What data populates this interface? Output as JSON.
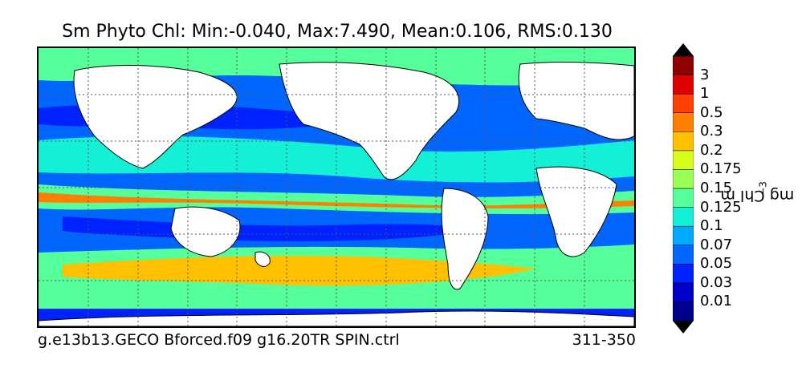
{
  "title": "Sm Phyto Chl: Min:-0.040, Max:7.490, Mean:0.106, RMS:0.130",
  "caption_left": "g.e13b13.GECO Bforced.f09 g16.20TR SPIN.ctrl",
  "caption_right": "311-350",
  "colorbar": {
    "label": "mg Chl m",
    "label_exponent": "−3",
    "extend": "both",
    "ticks": [
      "0.01",
      "0.03",
      "0.05",
      "0.07",
      "0.1",
      "0.125",
      "0.15",
      "0.175",
      "0.2",
      "0.3",
      "0.5",
      "1",
      "3"
    ],
    "colors": [
      "#00008f",
      "#0000c8",
      "#0022ff",
      "#0066ff",
      "#00aaff",
      "#14f0d6",
      "#55ff99",
      "#99ff55",
      "#d8ff1a",
      "#ffc000",
      "#ff8000",
      "#ff4000",
      "#e00000",
      "#8f0000"
    ],
    "under_color": "#000000",
    "over_color": "#000000"
  },
  "map": {
    "land_color": "#ffffff",
    "gridlines": "dotted",
    "projection": "global equirectangular, Pacific-centered"
  }
}
